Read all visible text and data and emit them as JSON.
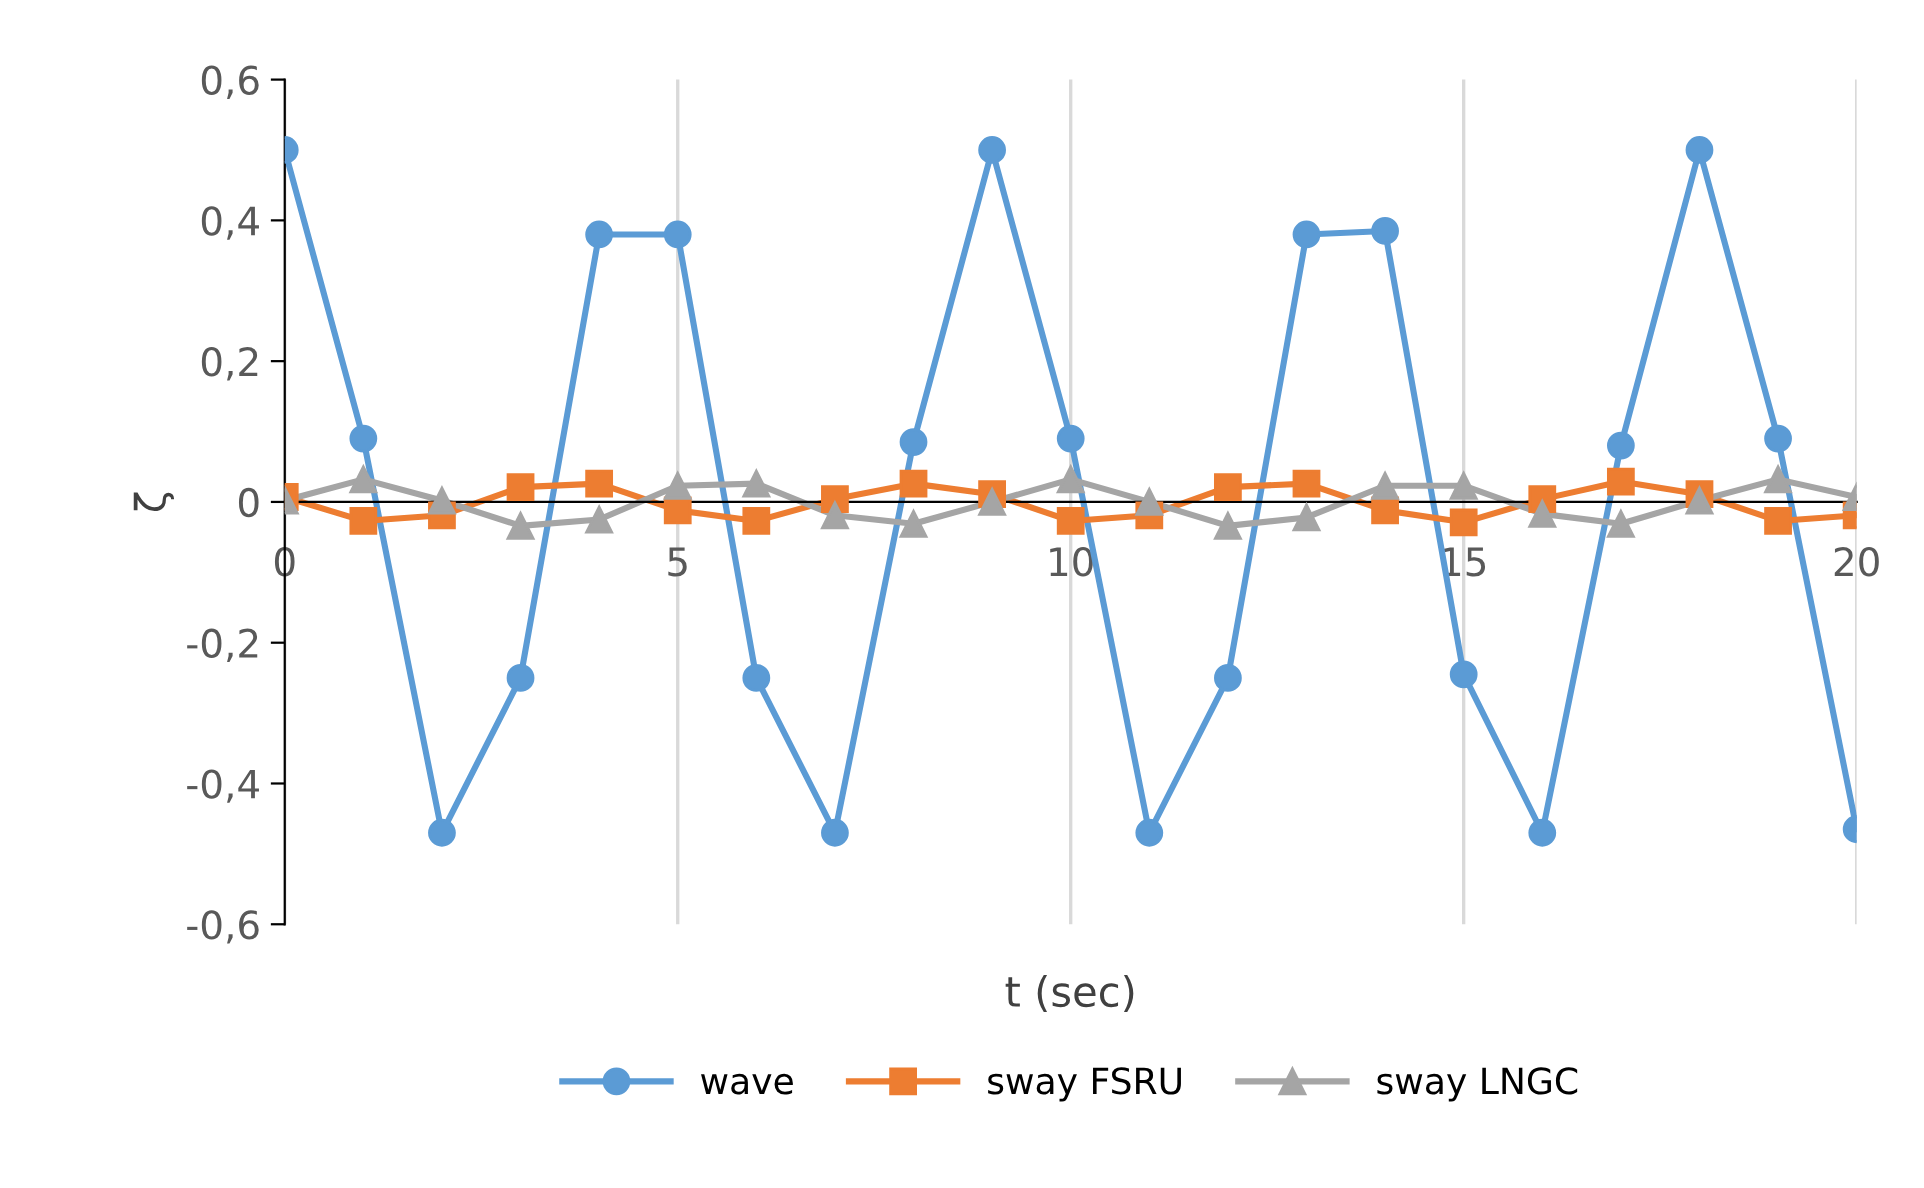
{
  "chart_data": {
    "type": "line",
    "xlabel": "t (sec)",
    "ylabel": "ζ",
    "x": [
      0,
      1,
      2,
      3,
      4,
      5,
      6,
      7,
      8,
      9,
      10,
      11,
      12,
      13,
      14,
      15,
      16,
      17,
      18,
      19,
      20
    ],
    "series": [
      {
        "name": "wave",
        "color": "#5b9bd5",
        "marker": "circle",
        "values": [
          0.5,
          0.09,
          -0.47,
          -0.25,
          0.38,
          0.38,
          -0.25,
          -0.47,
          0.085,
          0.5,
          0.09,
          -0.47,
          -0.25,
          0.38,
          0.385,
          -0.245,
          -0.47,
          0.08,
          0.5,
          0.09,
          -0.465
        ]
      },
      {
        "name": "sway FSRU",
        "color": "#ed7d31",
        "marker": "square",
        "values": [
          0.007,
          -0.027,
          -0.019,
          0.021,
          0.026,
          -0.012,
          -0.027,
          0.004,
          0.026,
          0.011,
          -0.027,
          -0.019,
          0.021,
          0.026,
          -0.012,
          -0.029,
          0.004,
          0.029,
          0.011,
          -0.027,
          -0.019
        ]
      },
      {
        "name": "sway LNGC",
        "color": "#a5a5a5",
        "marker": "triangle",
        "values": [
          0.002,
          0.032,
          0.002,
          -0.034,
          -0.025,
          0.023,
          0.026,
          -0.019,
          -0.031,
          0,
          0.032,
          0,
          -0.034,
          -0.022,
          0.023,
          0.023,
          -0.017,
          -0.031,
          0.002,
          0.032,
          0.007
        ]
      }
    ],
    "xlim": [
      0,
      20
    ],
    "xticks": [
      0,
      5,
      10,
      15,
      20
    ],
    "ylim": [
      -0.6,
      0.6
    ],
    "yticks": [
      {
        "value": -0.6,
        "label": "-0,6"
      },
      {
        "value": -0.4,
        "label": "-0,4"
      },
      {
        "value": -0.2,
        "label": "-0,2"
      },
      {
        "value": 0,
        "label": "0"
      },
      {
        "value": 0.2,
        "label": "0,2"
      },
      {
        "value": 0.4,
        "label": "0,4"
      },
      {
        "value": 0.6,
        "label": "0,6"
      }
    ],
    "grid": "x",
    "legend": "bottom",
    "line_style": "solid"
  }
}
